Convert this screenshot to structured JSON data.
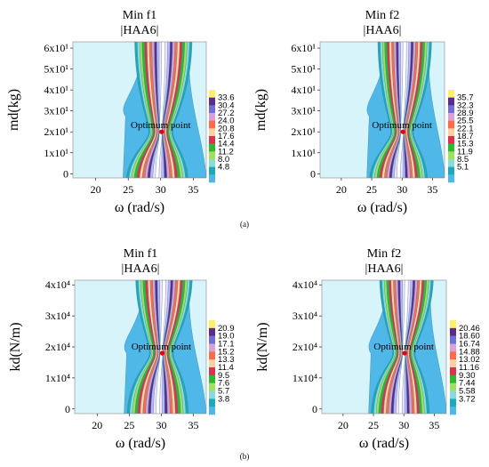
{
  "captions": [
    "(a)",
    "(b)"
  ],
  "chart_data": [
    {
      "id": "a1",
      "type": "contour",
      "title": "Min f1",
      "subtitle": "|HAA6|",
      "xlabel": "ω (rad/s)",
      "ylabel": "md(kg)",
      "xticks": [
        "20",
        "25",
        "30",
        "35"
      ],
      "xtick_values": [
        20,
        25,
        30,
        35
      ],
      "yticks": [
        "0",
        "1x10¹",
        "2x10¹",
        "3x10¹",
        "4x10¹",
        "5x10¹",
        "6x10¹"
      ],
      "ytick_values": [
        0,
        10,
        20,
        30,
        40,
        50,
        60
      ],
      "xlim": [
        16.5,
        37
      ],
      "ylim": [
        -2,
        63
      ],
      "colorbar_ticks": [
        "33.6",
        "30.4",
        "27.2",
        "24.0",
        "20.8",
        "17.6",
        "14.4",
        "11.2",
        "8.0",
        "4.8"
      ],
      "colorbar_values": [
        33.6,
        30.4,
        27.2,
        24.0,
        20.8,
        17.6,
        14.4,
        11.2,
        8.0,
        4.8
      ],
      "annotation": {
        "text": "Optimum point",
        "x": 30,
        "y": 20
      }
    },
    {
      "id": "a2",
      "type": "contour",
      "title": "Min f2",
      "subtitle": "|HAA6|",
      "xlabel": "ω (rad/s)",
      "ylabel": "md(kg)",
      "xticks": [
        "20",
        "25",
        "30",
        "35"
      ],
      "xtick_values": [
        20,
        25,
        30,
        35
      ],
      "yticks": [
        "0",
        "1x10¹",
        "2x10¹",
        "3x10¹",
        "4x10¹",
        "5x10¹",
        "6x10¹"
      ],
      "ytick_values": [
        0,
        10,
        20,
        30,
        40,
        50,
        60
      ],
      "xlim": [
        16.5,
        37
      ],
      "ylim": [
        -2,
        63
      ],
      "colorbar_ticks": [
        "35.7",
        "32.3",
        "28.9",
        "25.5",
        "22.1",
        "18.7",
        "15.3",
        "11.9",
        "8.5",
        "5.1"
      ],
      "colorbar_values": [
        35.7,
        32.3,
        28.9,
        25.5,
        22.1,
        18.7,
        15.3,
        11.9,
        8.5,
        5.1
      ],
      "annotation": {
        "text": "Optimum point",
        "x": 30,
        "y": 20
      }
    },
    {
      "id": "b1",
      "type": "contour",
      "title": "Min f1",
      "subtitle": "|HAA6|",
      "xlabel": "ω (rad/s)",
      "ylabel": "kd(N/m)",
      "xticks": [
        "20",
        "25",
        "30",
        "35"
      ],
      "xtick_values": [
        20,
        25,
        30,
        35
      ],
      "yticks": [
        "0",
        "1x10⁴",
        "2x10⁴",
        "3x10⁴",
        "4x10⁴"
      ],
      "ytick_values": [
        0,
        10000,
        20000,
        30000,
        40000
      ],
      "xlim": [
        16.5,
        37
      ],
      "ylim": [
        -1500,
        41500
      ],
      "colorbar_ticks": [
        "20.9",
        "19.0",
        "17.1",
        "15.2",
        "13.3",
        "11.4",
        "9.5",
        "7.6",
        "5.7",
        "3.8"
      ],
      "colorbar_values": [
        20.9,
        19.0,
        17.1,
        15.2,
        13.3,
        11.4,
        9.5,
        7.6,
        5.7,
        3.8
      ],
      "annotation": {
        "text": "Optimum point",
        "x": 30,
        "y": 18000
      }
    },
    {
      "id": "b2",
      "type": "contour",
      "title": "Min f2",
      "subtitle": "|HAA6|",
      "xlabel": "ω (rad/s)",
      "ylabel": "kd(N/m)",
      "xticks": [
        "20",
        "25",
        "30",
        "35"
      ],
      "xtick_values": [
        20,
        25,
        30,
        35
      ],
      "yticks": [
        "0",
        "1x10⁴",
        "2x10⁴",
        "3x10⁴",
        "4x10⁴"
      ],
      "ytick_values": [
        0,
        10000,
        20000,
        30000,
        40000
      ],
      "xlim": [
        16.5,
        37
      ],
      "ylim": [
        -1500,
        41500
      ],
      "colorbar_ticks": [
        "20.46",
        "18.60",
        "16.74",
        "14.88",
        "13.02",
        "11.16",
        "9.30",
        "7.44",
        "5.58",
        "3.72"
      ],
      "colorbar_values": [
        20.46,
        18.6,
        16.74,
        14.88,
        13.02,
        11.16,
        9.3,
        7.44,
        5.58,
        3.72
      ],
      "annotation": {
        "text": "Optimum point",
        "x": 30,
        "y": 18000
      }
    }
  ],
  "palette": [
    "#ffffff",
    "#fde0ff",
    "#b8b8ff",
    "#5a2d8a",
    "#d9a0d9",
    "#ff6a4a",
    "#ffd0a0",
    "#e03050",
    "#2db82d",
    "#a0e060",
    "#8adcdc",
    "#1fa8b8",
    "#4fb8e8",
    "#9ee0f0",
    "#d8f4fb"
  ]
}
